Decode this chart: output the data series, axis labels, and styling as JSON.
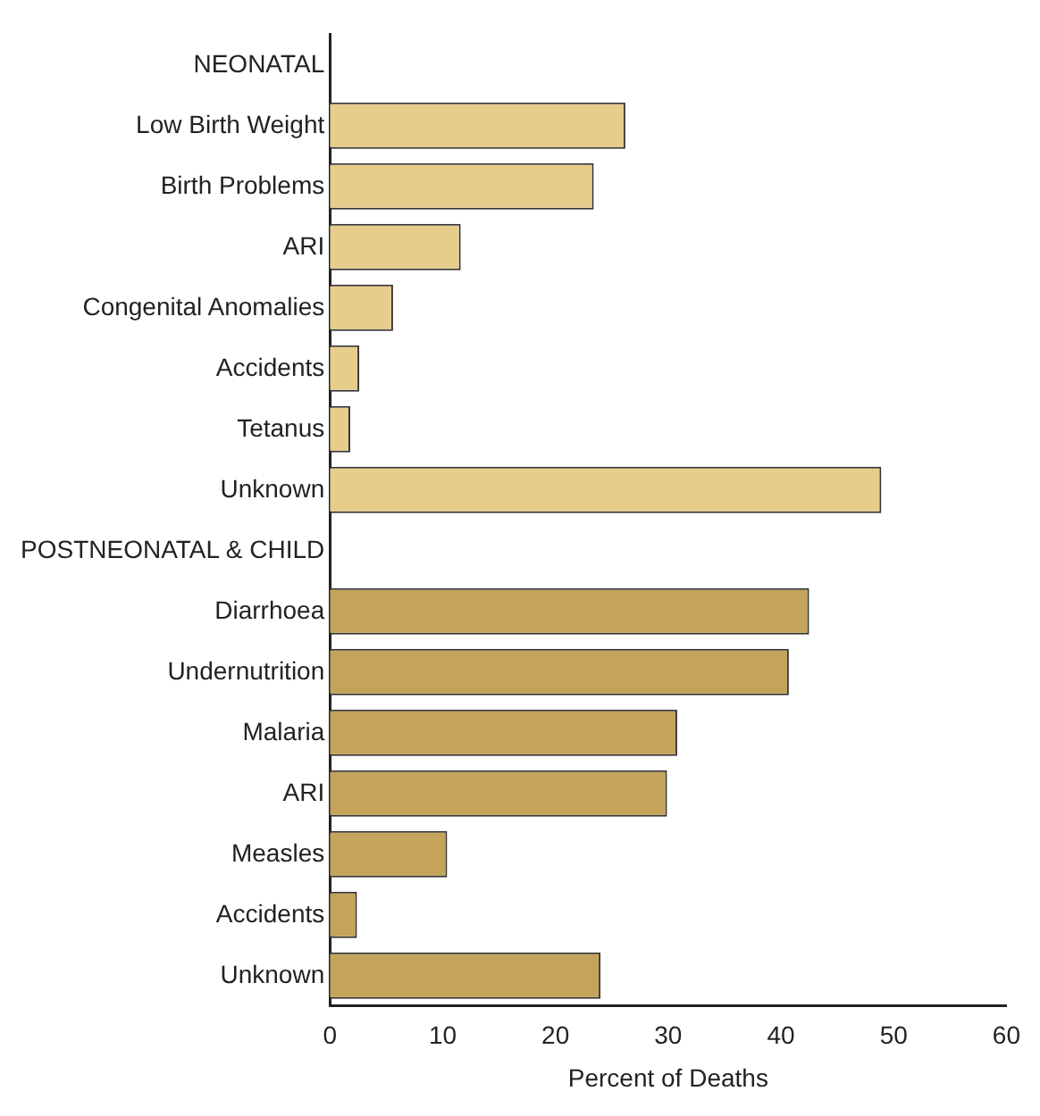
{
  "chart_data": {
    "type": "bar",
    "orientation": "horizontal",
    "xlabel": "Percent of Deaths",
    "categories": [
      "NEONATAL",
      "Low Birth Weight",
      "Birth Problems",
      "ARI",
      "Congenital Anomalies",
      "Accidents",
      "Tetanus",
      "Unknown",
      "POSTNEONATAL & CHILD",
      "Diarrhoea",
      "Undernutrition",
      "Malaria",
      "ARI",
      "Measles",
      "Accidents",
      "Unknown"
    ],
    "values": [
      null,
      26.2,
      23.4,
      11.6,
      5.6,
      2.6,
      1.8,
      48.9,
      null,
      42.5,
      40.7,
      30.8,
      29.9,
      10.4,
      2.4,
      24.0
    ],
    "colors": [
      "#e6cd8c",
      "#e6cd8c",
      "#e6cd8c",
      "#e6cd8c",
      "#e6cd8c",
      "#e6cd8c",
      "#e6cd8c",
      "#e6cd8c",
      "#c4a35a",
      "#c4a35a",
      "#c4a35a",
      "#c4a35a",
      "#c4a35a",
      "#c4a35a",
      "#c4a35a",
      "#c4a35a"
    ],
    "xlim": [
      0,
      60
    ],
    "xticks": [
      0,
      10,
      20,
      30,
      40,
      50,
      60
    ],
    "grid": false,
    "legend": false
  }
}
